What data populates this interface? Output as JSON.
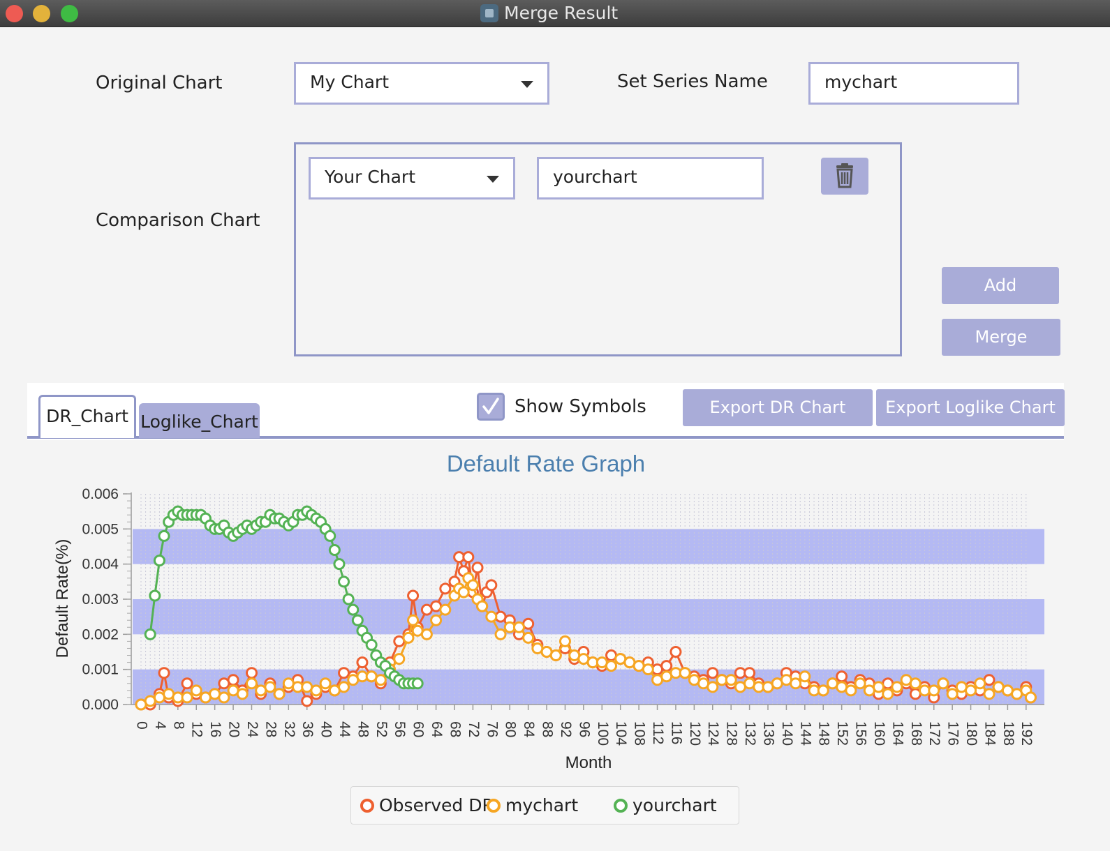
{
  "window": {
    "title": "Merge Result"
  },
  "form": {
    "original_label": "Original Chart",
    "original_select": "My Chart",
    "series_name_label": "Set Series Name",
    "series_name_value": "mychart",
    "comparison_label": "Comparison Chart",
    "comparison_select": "Your Chart",
    "comparison_name_value": "yourchart",
    "add_label": "Add",
    "merge_label": "Merge"
  },
  "tabs": {
    "items": [
      "DR_Chart",
      "Loglike_Chart"
    ],
    "active": "DR_Chart"
  },
  "toolbar": {
    "show_symbols_label": "Show Symbols",
    "show_symbols_checked": true,
    "export_dr_label": "Export DR Chart",
    "export_loglike_label": "Export Loglike Chart"
  },
  "colors": {
    "accent": "#a9acd8",
    "border": "#8f96c7",
    "title": "#4b7fae",
    "observed": "#ee6030",
    "mychart": "#f6a623",
    "yourchart": "#54b254"
  },
  "icons": {
    "delete": "trash-icon",
    "checkbox": "checkmark-icon"
  },
  "chart_data": {
    "type": "line",
    "title": "Default Rate Graph",
    "xlabel": "Month",
    "ylabel": "Default Rate(%)",
    "xlim": [
      0,
      194
    ],
    "ylim": [
      0,
      0.006
    ],
    "yticks": [
      "0.000",
      "0.001",
      "0.002",
      "0.003",
      "0.004",
      "0.005",
      "0.006"
    ],
    "xtick_step": 4,
    "xtick_max": 192,
    "legend_position": "bottom",
    "grid": true,
    "series": [
      {
        "name": "Observed DR",
        "points": [
          [
            0,
            0
          ],
          [
            2,
            0
          ],
          [
            4,
            0.0003
          ],
          [
            5,
            0.0009
          ],
          [
            6,
            0.0002
          ],
          [
            8,
            0.0001
          ],
          [
            10,
            0.0006
          ],
          [
            12,
            0.0003
          ],
          [
            14,
            0.0002
          ],
          [
            16,
            0.0003
          ],
          [
            18,
            0.0006
          ],
          [
            20,
            0.0007
          ],
          [
            22,
            0.0004
          ],
          [
            24,
            0.0009
          ],
          [
            26,
            0.0003
          ],
          [
            28,
            0.0006
          ],
          [
            30,
            0.0003
          ],
          [
            32,
            0.0005
          ],
          [
            34,
            0.0007
          ],
          [
            36,
            0.0001
          ],
          [
            38,
            0.0003
          ],
          [
            40,
            0.0005
          ],
          [
            42,
            0.0004
          ],
          [
            44,
            0.0009
          ],
          [
            46,
            0.0008
          ],
          [
            48,
            0.0012
          ],
          [
            50,
            0.0008
          ],
          [
            52,
            0.0006
          ],
          [
            54,
            0.0012
          ],
          [
            56,
            0.0018
          ],
          [
            58,
            0.002
          ],
          [
            59,
            0.0031
          ],
          [
            60,
            0.0022
          ],
          [
            62,
            0.0027
          ],
          [
            64,
            0.0028
          ],
          [
            66,
            0.0033
          ],
          [
            68,
            0.0035
          ],
          [
            69,
            0.0042
          ],
          [
            70,
            0.0038
          ],
          [
            71,
            0.0042
          ],
          [
            72,
            0.0032
          ],
          [
            73,
            0.0039
          ],
          [
            74,
            0.0028
          ],
          [
            75,
            0.0032
          ],
          [
            76,
            0.0034
          ],
          [
            78,
            0.0025
          ],
          [
            80,
            0.0024
          ],
          [
            82,
            0.002
          ],
          [
            84,
            0.0023
          ],
          [
            86,
            0.0017
          ],
          [
            88,
            0.0015
          ],
          [
            90,
            0.0014
          ],
          [
            92,
            0.0016
          ],
          [
            94,
            0.0013
          ],
          [
            96,
            0.0015
          ],
          [
            98,
            0.0012
          ],
          [
            100,
            0.0011
          ],
          [
            102,
            0.0014
          ],
          [
            104,
            0.0013
          ],
          [
            106,
            0.0012
          ],
          [
            108,
            0.0011
          ],
          [
            110,
            0.0012
          ],
          [
            112,
            0.001
          ],
          [
            114,
            0.0011
          ],
          [
            116,
            0.0015
          ],
          [
            118,
            0.0009
          ],
          [
            120,
            0.0008
          ],
          [
            122,
            0.0007
          ],
          [
            124,
            0.0009
          ],
          [
            126,
            0.0007
          ],
          [
            128,
            0.0006
          ],
          [
            130,
            0.0009
          ],
          [
            132,
            0.0009
          ],
          [
            134,
            0.0006
          ],
          [
            136,
            0.0005
          ],
          [
            138,
            0.0006
          ],
          [
            140,
            0.0009
          ],
          [
            142,
            0.0008
          ],
          [
            144,
            0.0006
          ],
          [
            146,
            0.0005
          ],
          [
            148,
            0.0004
          ],
          [
            150,
            0.0006
          ],
          [
            152,
            0.0008
          ],
          [
            154,
            0.0005
          ],
          [
            156,
            0.0007
          ],
          [
            158,
            0.0006
          ],
          [
            160,
            0.0003
          ],
          [
            162,
            0.0006
          ],
          [
            164,
            0.0004
          ],
          [
            166,
            0.0006
          ],
          [
            168,
            0.0003
          ],
          [
            170,
            0.0005
          ],
          [
            172,
            0.0002
          ],
          [
            174,
            0.0006
          ],
          [
            176,
            0.0004
          ],
          [
            178,
            0.0003
          ],
          [
            180,
            0.0005
          ],
          [
            182,
            0.0004
          ],
          [
            184,
            0.0007
          ],
          [
            186,
            0.0005
          ],
          [
            188,
            0.0004
          ],
          [
            190,
            0.0003
          ],
          [
            192,
            0.0005
          ],
          [
            193,
            0.0002
          ]
        ]
      },
      {
        "name": "mychart",
        "points": [
          [
            0,
            0
          ],
          [
            2,
            0.0001
          ],
          [
            4,
            0.0002
          ],
          [
            6,
            0.0003
          ],
          [
            8,
            0.0002
          ],
          [
            10,
            0.0002
          ],
          [
            12,
            0.0004
          ],
          [
            14,
            0.0002
          ],
          [
            16,
            0.0003
          ],
          [
            18,
            0.0002
          ],
          [
            20,
            0.0004
          ],
          [
            22,
            0.0003
          ],
          [
            24,
            0.0006
          ],
          [
            26,
            0.0004
          ],
          [
            28,
            0.0005
          ],
          [
            30,
            0.0003
          ],
          [
            32,
            0.0006
          ],
          [
            34,
            0.0005
          ],
          [
            36,
            0.0005
          ],
          [
            38,
            0.0004
          ],
          [
            40,
            0.0006
          ],
          [
            42,
            0.0004
          ],
          [
            44,
            0.0005
          ],
          [
            46,
            0.0007
          ],
          [
            48,
            0.0008
          ],
          [
            50,
            0.0008
          ],
          [
            52,
            0.0007
          ],
          [
            54,
            0.001
          ],
          [
            56,
            0.0013
          ],
          [
            58,
            0.0019
          ],
          [
            59,
            0.0024
          ],
          [
            60,
            0.0021
          ],
          [
            62,
            0.002
          ],
          [
            64,
            0.0024
          ],
          [
            66,
            0.0027
          ],
          [
            68,
            0.0031
          ],
          [
            69,
            0.0033
          ],
          [
            70,
            0.0032
          ],
          [
            71,
            0.0036
          ],
          [
            72,
            0.0034
          ],
          [
            73,
            0.003
          ],
          [
            74,
            0.0028
          ],
          [
            76,
            0.0025
          ],
          [
            78,
            0.002
          ],
          [
            80,
            0.0022
          ],
          [
            82,
            0.0022
          ],
          [
            84,
            0.0019
          ],
          [
            86,
            0.0016
          ],
          [
            88,
            0.0015
          ],
          [
            90,
            0.0014
          ],
          [
            92,
            0.0018
          ],
          [
            94,
            0.0014
          ],
          [
            96,
            0.0013
          ],
          [
            98,
            0.0012
          ],
          [
            100,
            0.0012
          ],
          [
            102,
            0.0011
          ],
          [
            104,
            0.0013
          ],
          [
            106,
            0.0012
          ],
          [
            108,
            0.0011
          ],
          [
            110,
            0.001
          ],
          [
            112,
            0.0007
          ],
          [
            114,
            0.0008
          ],
          [
            116,
            0.0009
          ],
          [
            118,
            0.0009
          ],
          [
            120,
            0.0007
          ],
          [
            122,
            0.0006
          ],
          [
            124,
            0.0005
          ],
          [
            126,
            0.0007
          ],
          [
            128,
            0.0007
          ],
          [
            130,
            0.0005
          ],
          [
            132,
            0.0006
          ],
          [
            134,
            0.0005
          ],
          [
            136,
            0.0005
          ],
          [
            138,
            0.0006
          ],
          [
            140,
            0.0007
          ],
          [
            142,
            0.0006
          ],
          [
            144,
            0.0008
          ],
          [
            146,
            0.0004
          ],
          [
            148,
            0.0004
          ],
          [
            150,
            0.0006
          ],
          [
            152,
            0.0005
          ],
          [
            154,
            0.0004
          ],
          [
            156,
            0.0006
          ],
          [
            158,
            0.0004
          ],
          [
            160,
            0.0005
          ],
          [
            162,
            0.0003
          ],
          [
            164,
            0.0005
          ],
          [
            166,
            0.0007
          ],
          [
            168,
            0.0006
          ],
          [
            170,
            0.0004
          ],
          [
            172,
            0.0004
          ],
          [
            174,
            0.0006
          ],
          [
            176,
            0.0003
          ],
          [
            178,
            0.0005
          ],
          [
            180,
            0.0004
          ],
          [
            182,
            0.0006
          ],
          [
            184,
            0.0003
          ],
          [
            186,
            0.0005
          ],
          [
            188,
            0.0004
          ],
          [
            190,
            0.0003
          ],
          [
            192,
            0.0004
          ],
          [
            193,
            0.0002
          ]
        ]
      },
      {
        "name": "yourchart",
        "points": [
          [
            2,
            0.002
          ],
          [
            3,
            0.0031
          ],
          [
            4,
            0.0041
          ],
          [
            5,
            0.0048
          ],
          [
            6,
            0.0052
          ],
          [
            7,
            0.0054
          ],
          [
            8,
            0.0055
          ],
          [
            9,
            0.0054
          ],
          [
            10,
            0.0054
          ],
          [
            11,
            0.0054
          ],
          [
            12,
            0.0054
          ],
          [
            13,
            0.0054
          ],
          [
            14,
            0.0053
          ],
          [
            15,
            0.0051
          ],
          [
            16,
            0.005
          ],
          [
            17,
            0.005
          ],
          [
            18,
            0.0051
          ],
          [
            19,
            0.0049
          ],
          [
            20,
            0.0048
          ],
          [
            21,
            0.0049
          ],
          [
            22,
            0.005
          ],
          [
            23,
            0.0051
          ],
          [
            24,
            0.005
          ],
          [
            25,
            0.0051
          ],
          [
            26,
            0.0052
          ],
          [
            27,
            0.0052
          ],
          [
            28,
            0.0054
          ],
          [
            29,
            0.0053
          ],
          [
            30,
            0.0053
          ],
          [
            31,
            0.0052
          ],
          [
            32,
            0.0051
          ],
          [
            33,
            0.0052
          ],
          [
            34,
            0.0054
          ],
          [
            35,
            0.0054
          ],
          [
            36,
            0.0055
          ],
          [
            37,
            0.0054
          ],
          [
            38,
            0.0053
          ],
          [
            39,
            0.0052
          ],
          [
            40,
            0.005
          ],
          [
            41,
            0.0048
          ],
          [
            42,
            0.0044
          ],
          [
            43,
            0.004
          ],
          [
            44,
            0.0035
          ],
          [
            45,
            0.003
          ],
          [
            46,
            0.0027
          ],
          [
            47,
            0.0024
          ],
          [
            48,
            0.0021
          ],
          [
            49,
            0.0019
          ],
          [
            50,
            0.0017
          ],
          [
            51,
            0.0014
          ],
          [
            52,
            0.0012
          ],
          [
            53,
            0.0011
          ],
          [
            54,
            0.0009
          ],
          [
            55,
            0.0008
          ],
          [
            56,
            0.0007
          ],
          [
            57,
            0.0006
          ],
          [
            58,
            0.0006
          ],
          [
            59,
            0.0006
          ],
          [
            60,
            0.0006
          ]
        ]
      }
    ]
  }
}
